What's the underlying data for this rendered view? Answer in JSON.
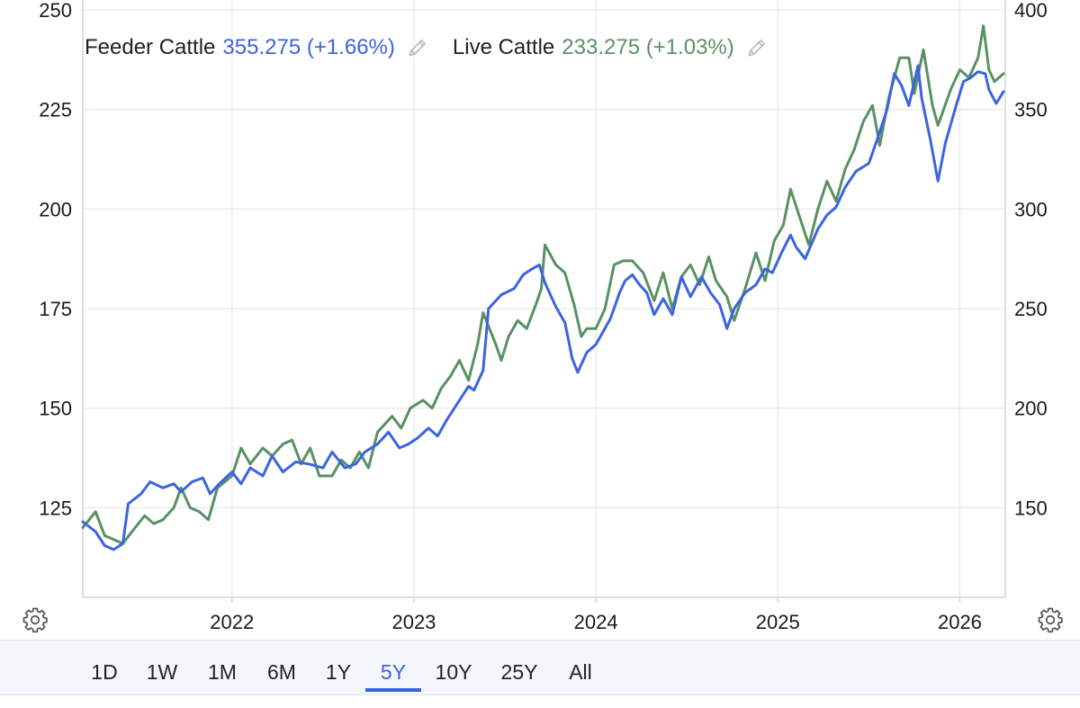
{
  "legend": {
    "feeder": {
      "name": "Feeder Cattle",
      "value": "355.275 (+1.66%)",
      "color": "#3b64e0"
    },
    "live": {
      "name": "Live Cattle",
      "value": "233.275 (+1.03%)",
      "color": "#5a9162"
    }
  },
  "range_buttons": [
    {
      "label": "1D",
      "active": false
    },
    {
      "label": "1W",
      "active": false
    },
    {
      "label": "1M",
      "active": false
    },
    {
      "label": "6M",
      "active": false
    },
    {
      "label": "1Y",
      "active": false
    },
    {
      "label": "5Y",
      "active": true
    },
    {
      "label": "10Y",
      "active": false
    },
    {
      "label": "25Y",
      "active": false
    },
    {
      "label": "All",
      "active": false
    }
  ],
  "icons": {
    "left_gear": "gear-icon",
    "right_gear": "gear-icon",
    "pencil": "pencil-icon"
  },
  "chart_data": {
    "type": "line",
    "title": "",
    "grid": true,
    "x_ticks": [
      "2022",
      "2023",
      "2024",
      "2025",
      "2026"
    ],
    "x_tick_years": [
      2022,
      2023,
      2024,
      2025,
      2026
    ],
    "xlim": [
      2021.18,
      2026.25
    ],
    "left_axis": {
      "series": "Live Cattle",
      "ticks": [
        125,
        150,
        175,
        200,
        225,
        250
      ],
      "range": [
        102.5,
        252.5
      ]
    },
    "right_axis": {
      "series": "Feeder Cattle",
      "ticks": [
        150,
        200,
        250,
        300,
        350,
        400
      ],
      "range": [
        105,
        405
      ]
    },
    "series": [
      {
        "name": "Feeder Cattle",
        "axis": "right",
        "color": "#3b64e0",
        "points": [
          [
            2021.18,
            143
          ],
          [
            2021.25,
            138
          ],
          [
            2021.3,
            131
          ],
          [
            2021.35,
            129
          ],
          [
            2021.4,
            132
          ],
          [
            2021.43,
            152
          ],
          [
            2021.5,
            157
          ],
          [
            2021.55,
            163
          ],
          [
            2021.62,
            160
          ],
          [
            2021.68,
            162
          ],
          [
            2021.72,
            158
          ],
          [
            2021.78,
            163
          ],
          [
            2021.84,
            165
          ],
          [
            2021.88,
            157
          ],
          [
            2021.93,
            162
          ],
          [
            2022.0,
            168
          ],
          [
            2022.05,
            162
          ],
          [
            2022.1,
            170
          ],
          [
            2022.17,
            166
          ],
          [
            2022.22,
            176
          ],
          [
            2022.28,
            168
          ],
          [
            2022.35,
            173
          ],
          [
            2022.42,
            172
          ],
          [
            2022.5,
            170
          ],
          [
            2022.55,
            178
          ],
          [
            2022.62,
            170
          ],
          [
            2022.68,
            172
          ],
          [
            2022.73,
            178
          ],
          [
            2022.8,
            182
          ],
          [
            2022.86,
            188
          ],
          [
            2022.92,
            180
          ],
          [
            2022.97,
            182
          ],
          [
            2023.02,
            185
          ],
          [
            2023.08,
            190
          ],
          [
            2023.13,
            186
          ],
          [
            2023.18,
            194
          ],
          [
            2023.25,
            204
          ],
          [
            2023.3,
            211
          ],
          [
            2023.33,
            209
          ],
          [
            2023.38,
            219
          ],
          [
            2023.41,
            250
          ],
          [
            2023.48,
            257
          ],
          [
            2023.55,
            260
          ],
          [
            2023.6,
            267
          ],
          [
            2023.65,
            270
          ],
          [
            2023.69,
            272
          ],
          [
            2023.72,
            263
          ],
          [
            2023.78,
            251
          ],
          [
            2023.83,
            243
          ],
          [
            2023.87,
            225
          ],
          [
            2023.9,
            218
          ],
          [
            2023.95,
            228
          ],
          [
            2024.0,
            232
          ],
          [
            2024.08,
            245
          ],
          [
            2024.13,
            258
          ],
          [
            2024.16,
            264
          ],
          [
            2024.2,
            267
          ],
          [
            2024.24,
            262
          ],
          [
            2024.28,
            258
          ],
          [
            2024.32,
            247
          ],
          [
            2024.37,
            255
          ],
          [
            2024.42,
            247
          ],
          [
            2024.47,
            266
          ],
          [
            2024.52,
            256
          ],
          [
            2024.58,
            266
          ],
          [
            2024.63,
            258
          ],
          [
            2024.68,
            252
          ],
          [
            2024.72,
            240
          ],
          [
            2024.76,
            250
          ],
          [
            2024.82,
            258
          ],
          [
            2024.88,
            262
          ],
          [
            2024.93,
            270
          ],
          [
            2024.97,
            268
          ],
          [
            2025.02,
            278
          ],
          [
            2025.07,
            287
          ],
          [
            2025.1,
            281
          ],
          [
            2025.15,
            275
          ],
          [
            2025.22,
            290
          ],
          [
            2025.27,
            297
          ],
          [
            2025.32,
            301
          ],
          [
            2025.37,
            311
          ],
          [
            2025.43,
            319
          ],
          [
            2025.5,
            323
          ],
          [
            2025.55,
            336
          ],
          [
            2025.6,
            350
          ],
          [
            2025.64,
            368
          ],
          [
            2025.68,
            362
          ],
          [
            2025.72,
            352
          ],
          [
            2025.77,
            372
          ],
          [
            2025.79,
            356
          ],
          [
            2025.84,
            334
          ],
          [
            2025.88,
            314
          ],
          [
            2025.92,
            333
          ],
          [
            2025.98,
            352
          ],
          [
            2026.02,
            364
          ],
          [
            2026.06,
            366
          ],
          [
            2026.1,
            369
          ],
          [
            2026.14,
            368
          ],
          [
            2026.16,
            360
          ],
          [
            2026.2,
            353
          ],
          [
            2026.24,
            359
          ]
        ]
      },
      {
        "name": "Live Cattle",
        "axis": "left",
        "color": "#5a9162",
        "points": [
          [
            2021.18,
            120
          ],
          [
            2021.25,
            124
          ],
          [
            2021.3,
            118
          ],
          [
            2021.35,
            117
          ],
          [
            2021.4,
            116
          ],
          [
            2021.45,
            119
          ],
          [
            2021.52,
            123
          ],
          [
            2021.57,
            121
          ],
          [
            2021.62,
            122
          ],
          [
            2021.68,
            125
          ],
          [
            2021.72,
            130
          ],
          [
            2021.77,
            125
          ],
          [
            2021.82,
            124
          ],
          [
            2021.87,
            122
          ],
          [
            2021.92,
            130
          ],
          [
            2022.0,
            133
          ],
          [
            2022.05,
            140
          ],
          [
            2022.1,
            136
          ],
          [
            2022.17,
            140
          ],
          [
            2022.22,
            138
          ],
          [
            2022.28,
            141
          ],
          [
            2022.33,
            142
          ],
          [
            2022.38,
            136
          ],
          [
            2022.43,
            140
          ],
          [
            2022.48,
            133
          ],
          [
            2022.55,
            133
          ],
          [
            2022.6,
            137
          ],
          [
            2022.65,
            135
          ],
          [
            2022.7,
            139
          ],
          [
            2022.75,
            135
          ],
          [
            2022.8,
            144
          ],
          [
            2022.88,
            148
          ],
          [
            2022.93,
            145
          ],
          [
            2022.98,
            150
          ],
          [
            2023.05,
            152
          ],
          [
            2023.1,
            150
          ],
          [
            2023.15,
            155
          ],
          [
            2023.2,
            158
          ],
          [
            2023.25,
            162
          ],
          [
            2023.3,
            157
          ],
          [
            2023.35,
            166
          ],
          [
            2023.38,
            174
          ],
          [
            2023.45,
            166
          ],
          [
            2023.48,
            162
          ],
          [
            2023.52,
            168
          ],
          [
            2023.57,
            172
          ],
          [
            2023.62,
            170
          ],
          [
            2023.67,
            176
          ],
          [
            2023.7,
            180
          ],
          [
            2023.72,
            191
          ],
          [
            2023.78,
            186
          ],
          [
            2023.83,
            184
          ],
          [
            2023.88,
            176
          ],
          [
            2023.92,
            168
          ],
          [
            2023.95,
            170
          ],
          [
            2024.0,
            170
          ],
          [
            2024.05,
            175
          ],
          [
            2024.1,
            186
          ],
          [
            2024.15,
            187
          ],
          [
            2024.2,
            187
          ],
          [
            2024.26,
            184
          ],
          [
            2024.32,
            177
          ],
          [
            2024.37,
            184
          ],
          [
            2024.42,
            175
          ],
          [
            2024.47,
            183
          ],
          [
            2024.52,
            186
          ],
          [
            2024.57,
            181
          ],
          [
            2024.62,
            188
          ],
          [
            2024.66,
            182
          ],
          [
            2024.72,
            178
          ],
          [
            2024.76,
            172
          ],
          [
            2024.82,
            180
          ],
          [
            2024.88,
            189
          ],
          [
            2024.93,
            182
          ],
          [
            2024.98,
            192
          ],
          [
            2025.03,
            196
          ],
          [
            2025.07,
            205
          ],
          [
            2025.12,
            198
          ],
          [
            2025.17,
            191
          ],
          [
            2025.22,
            200
          ],
          [
            2025.27,
            207
          ],
          [
            2025.32,
            202
          ],
          [
            2025.37,
            210
          ],
          [
            2025.42,
            215
          ],
          [
            2025.47,
            222
          ],
          [
            2025.52,
            226
          ],
          [
            2025.56,
            216
          ],
          [
            2025.61,
            228
          ],
          [
            2025.67,
            238
          ],
          [
            2025.72,
            238
          ],
          [
            2025.75,
            229
          ],
          [
            2025.8,
            240
          ],
          [
            2025.85,
            226
          ],
          [
            2025.88,
            221
          ],
          [
            2025.95,
            230
          ],
          [
            2026.0,
            235
          ],
          [
            2026.05,
            233
          ],
          [
            2026.1,
            238
          ],
          [
            2026.13,
            246
          ],
          [
            2026.16,
            235
          ],
          [
            2026.19,
            232
          ],
          [
            2026.24,
            234
          ]
        ]
      }
    ]
  }
}
